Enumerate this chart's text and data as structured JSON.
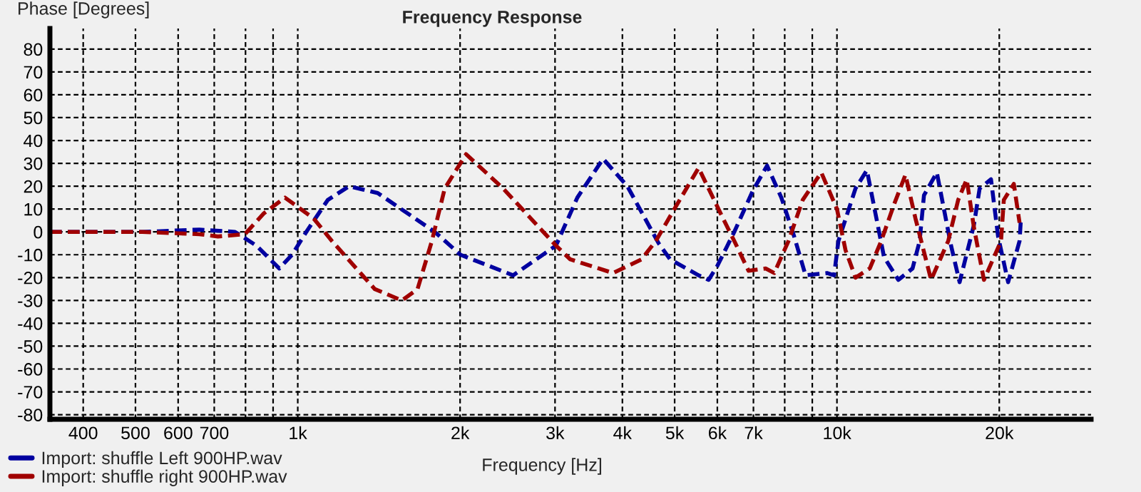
{
  "chart_data": {
    "type": "line",
    "title": "Frequency Response",
    "xlabel": "Frequency [Hz]",
    "ylabel": "Phase [Degrees]",
    "log": "x",
    "xlim": [
      347,
      29600
    ],
    "ylim": [
      -82,
      89
    ],
    "xticks": [
      400,
      500,
      600,
      700,
      {
        "value": 800,
        "label": null
      },
      {
        "value": 900,
        "label": null
      },
      {
        "value": 1000,
        "label": "1k"
      },
      {
        "value": 2000,
        "label": "2k"
      },
      {
        "value": 3000,
        "label": "3k"
      },
      {
        "value": 4000,
        "label": "4k"
      },
      {
        "value": 5000,
        "label": "5k"
      },
      {
        "value": 6000,
        "label": "6k"
      },
      {
        "value": 7000,
        "label": "7k"
      },
      {
        "value": 8000,
        "label": null
      },
      {
        "value": 9000,
        "label": null
      },
      {
        "value": 10000,
        "label": "10k"
      },
      {
        "value": 20000,
        "label": "20k"
      }
    ],
    "yticks": [
      -80,
      -70,
      -60,
      -50,
      -40,
      -30,
      -20,
      -10,
      0,
      10,
      20,
      30,
      40,
      50,
      60,
      70,
      80
    ],
    "grid": true,
    "legend": "bottom left",
    "line_style": "dashed",
    "marker": "none",
    "series": [
      {
        "name": "Import: shuffle Left 900HP.wav",
        "color": "#0000a0",
        "x": [
          347,
          515,
          657,
          765,
          838,
          924,
          976,
          1037,
          1137,
          1245,
          1407,
          1795,
          2003,
          2508,
          3012,
          3300,
          3683,
          4085,
          4670,
          4903,
          5538,
          5780,
          5996,
          6450,
          6982,
          7420,
          7886,
          8330,
          8745,
          9584,
          9879,
          10061,
          10824,
          11365,
          12226,
          12995,
          13809,
          14235,
          14500,
          15318,
          16277,
          16882,
          17947,
          18390,
          19306,
          19900,
          20770,
          21810,
          21940
        ],
        "values": [
          0,
          0,
          1,
          0,
          -6,
          -16,
          -10,
          0,
          14,
          20,
          17,
          0,
          -10,
          -19,
          -6,
          15,
          32,
          20,
          -5,
          -12,
          -19,
          -21,
          -15,
          0,
          18,
          29,
          15,
          -2,
          -19,
          -18,
          -19,
          -4,
          19,
          27,
          -11,
          -21,
          -16,
          -4,
          16,
          26,
          -6,
          -22,
          3,
          19,
          23,
          -2,
          -22,
          -4,
          6
        ]
      },
      {
        "name": "Import: shuffle right 900HP.wav",
        "color": "#a00000",
        "x": [
          347,
          515,
          657,
          711,
          798,
          864,
          947,
          1069,
          1157,
          1389,
          1560,
          1668,
          1773,
          1873,
          2052,
          2404,
          3012,
          3201,
          3843,
          4341,
          4613,
          4994,
          5538,
          6144,
          6450,
          6855,
          7374,
          7649,
          8130,
          8640,
          9352,
          10000,
          10373,
          10824,
          11505,
          12079,
          12760,
          13397,
          13978,
          14949,
          16081,
          16781,
          17404,
          17947,
          18731,
          20150,
          20393,
          21281,
          21810
        ],
        "values": [
          0,
          0,
          -1,
          -2,
          -1,
          8,
          15,
          6,
          -4,
          -25,
          -30,
          -25,
          -4,
          19,
          34,
          19,
          -6,
          -12,
          -18,
          -12,
          -4,
          10,
          28,
          6,
          -4,
          -17,
          -16,
          -18,
          -4,
          14,
          26,
          10,
          -8,
          -20,
          -16,
          -4,
          12,
          25,
          6,
          -21,
          -4,
          14,
          23,
          2,
          -21,
          -4,
          14,
          21,
          4
        ]
      }
    ]
  }
}
